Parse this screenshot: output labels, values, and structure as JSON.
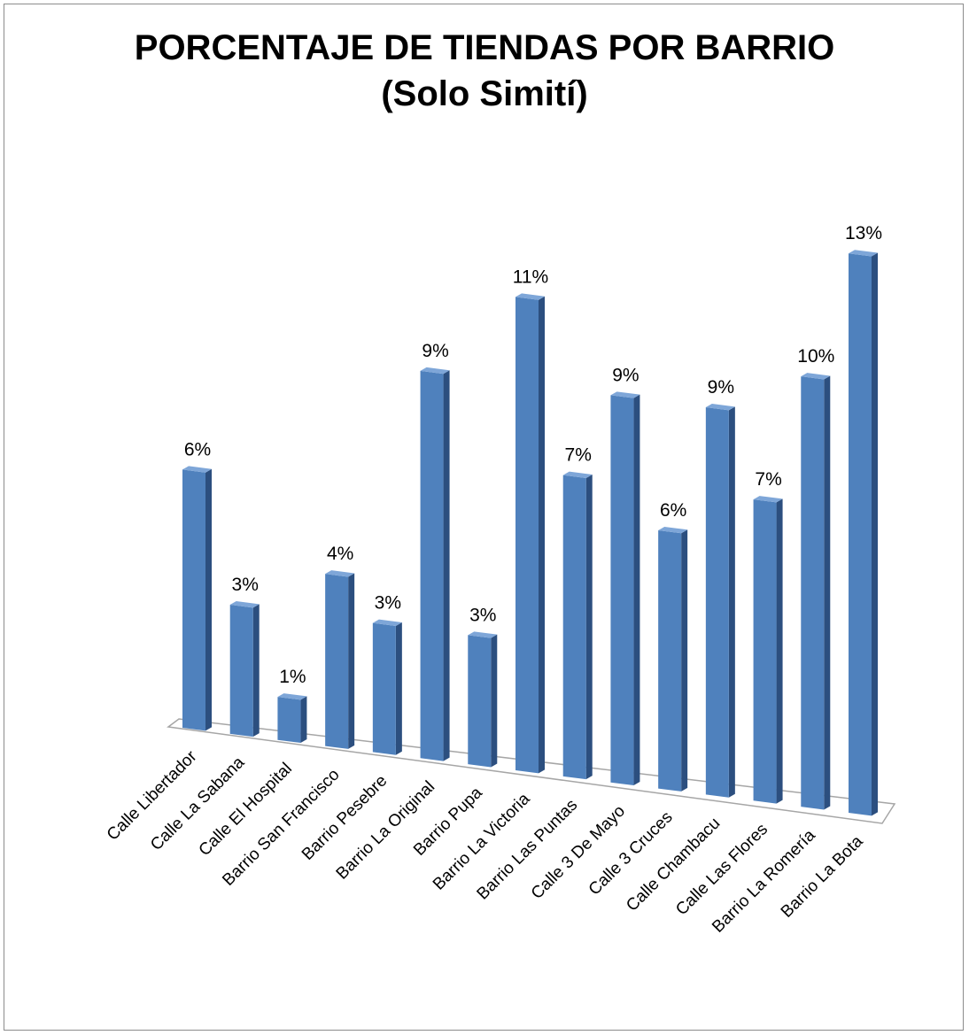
{
  "chart_data": {
    "type": "bar",
    "title": "PORCENTAJE DE TIENDAS POR BARRIO",
    "subtitle": "(Solo Simití)",
    "categories": [
      "Calle Libertador",
      "Calle La Sabana",
      "Calle El Hospital",
      "Barrio San Francisco",
      "Barrio Pesebre",
      "Barrio La Original",
      "Barrio Pupa",
      "Barrio La Victoria",
      "Barrio Las Puntas",
      "Calle 3 De Mayo",
      "Calle 3 Cruces",
      "Calle Chambacu",
      "Calle Las Flores",
      "Barrio La Romería",
      "Barrio La Bota"
    ],
    "values": [
      6,
      3,
      1,
      4,
      3,
      9,
      3,
      11,
      7,
      9,
      6,
      9,
      7,
      10,
      13
    ],
    "value_labels": [
      "6%",
      "3%",
      "1%",
      "4%",
      "3%",
      "9%",
      "3%",
      "11%",
      "7%",
      "9%",
      "6%",
      "9%",
      "7%",
      "10%",
      "13%"
    ],
    "unit": "%",
    "legend": "none",
    "grid": false,
    "style": "3d-column",
    "bar_color": "#4f81bd",
    "bar_side_color": "#2c4f7f",
    "bar_top_color": "#7ea6d8"
  }
}
